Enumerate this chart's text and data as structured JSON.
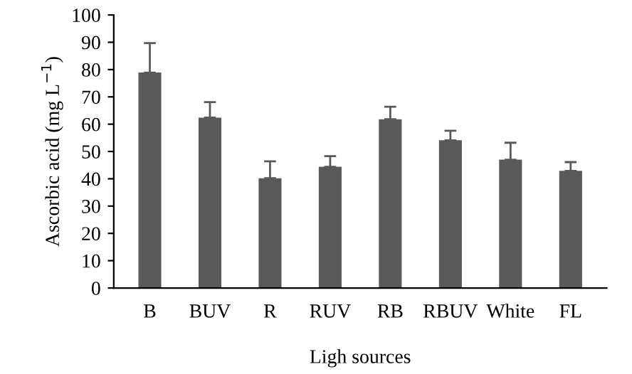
{
  "chart_data": {
    "type": "bar",
    "xlabel": "Ligh sources",
    "ylabel": "Ascorbic acid (mg L$^{−1}$)",
    "categories": [
      "B",
      "BUV",
      "R",
      "RUV",
      "RB",
      "RBUV",
      "White",
      "FL"
    ],
    "values": [
      78.9,
      62.4,
      40.2,
      44.4,
      61.8,
      54.1,
      47.0,
      42.9
    ],
    "errors": [
      [
        78.9,
        89.7
      ],
      [
        62.4,
        68.1
      ],
      [
        40.2,
        46.4
      ],
      [
        44.4,
        48.3
      ],
      [
        61.8,
        66.4
      ],
      [
        54.1,
        57.6
      ],
      [
        47.0,
        53.2
      ],
      [
        42.9,
        46.1
      ]
    ],
    "color": "#595959",
    "ylim": [
      0,
      100
    ],
    "yticks": [
      0,
      10,
      20,
      30,
      40,
      50,
      60,
      70,
      80,
      90,
      100
    ],
    "grid": false,
    "legend": false
  }
}
